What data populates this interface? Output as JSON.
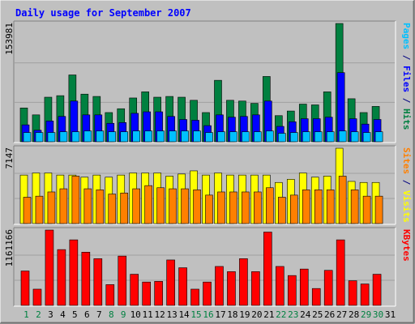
{
  "chart_data": {
    "type": "bar",
    "title": "Daily usage for September 2007",
    "x": [
      1,
      2,
      3,
      4,
      5,
      6,
      7,
      8,
      9,
      10,
      11,
      12,
      13,
      14,
      15,
      16,
      17,
      18,
      19,
      20,
      21,
      22,
      23,
      24,
      25,
      26,
      27,
      28,
      29,
      30,
      31
    ],
    "weekend_days": [
      1,
      2,
      8,
      9,
      15,
      16,
      22,
      23,
      29,
      30
    ],
    "panels": [
      {
        "key": "hits_files_pages",
        "ymax_label": "153981",
        "ylim": [
          0,
          153981
        ],
        "axis_label_parts": [
          {
            "text": "Pages",
            "color": "#00c0ff"
          },
          {
            "text": " / ",
            "color": "#000080"
          },
          {
            "text": "Files",
            "color": "#0000ff"
          },
          {
            "text": " / ",
            "color": "#000080"
          },
          {
            "text": "Hits",
            "color": "#008040"
          }
        ],
        "series": [
          {
            "name": "Hits",
            "color": "#008040",
            "values": [
              44000,
              35000,
              58000,
              60000,
              87000,
              62000,
              59000,
              38000,
              43000,
              57000,
              65000,
              58000,
              59000,
              58000,
              54000,
              38000,
              80000,
              54000,
              53000,
              50000,
              85000,
              34000,
              40000,
              49000,
              48000,
              65000,
              153981,
              56000,
              38000,
              46000
            ]
          },
          {
            "name": "Files",
            "color": "#0000ff",
            "values": [
              22000,
              15000,
              27000,
              33000,
              53000,
              35000,
              35000,
              24000,
              25000,
              37000,
              39000,
              39000,
              33000,
              29000,
              28000,
              21000,
              35000,
              32000,
              33000,
              35000,
              53000,
              20000,
              26000,
              30000,
              30000,
              32000,
              90000,
              30000,
              23000,
              29000
            ]
          },
          {
            "name": "Pages",
            "color": "#00c0ff",
            "values": [
              12000,
              12000,
              12000,
              13000,
              13000,
              14000,
              14000,
              13000,
              13000,
              14000,
              14000,
              14000,
              14000,
              14000,
              14000,
              12000,
              13000,
              13000,
              13000,
              13000,
              14000,
              11000,
              12000,
              13000,
              13000,
              13000,
              14000,
              13000,
              12000,
              13000
            ]
          }
        ]
      },
      {
        "key": "visits_sites",
        "ymax_label": "7147",
        "ylim": [
          0,
          7147
        ],
        "axis_label_parts": [
          {
            "text": "Sites",
            "color": "#ff8000"
          },
          {
            "text": " / ",
            "color": "#000080"
          },
          {
            "text": "Visits",
            "color": "#ffff00"
          }
        ],
        "series": [
          {
            "name": "Visits",
            "color": "#ffff00",
            "values": [
              4600,
              4800,
              4800,
              4600,
              4600,
              4400,
              4600,
              4400,
              4600,
              4800,
              4800,
              4800,
              4500,
              4700,
              5000,
              4600,
              4800,
              4600,
              4600,
              4600,
              4600,
              3900,
              4200,
              4800,
              4400,
              4500,
              7147,
              4000,
              3900,
              3900
            ]
          },
          {
            "name": "Sites",
            "color": "#ff8000",
            "values": [
              2500,
              2600,
              3000,
              3300,
              4500,
              3300,
              3200,
              2800,
              2900,
              3300,
              3600,
              3400,
              3300,
              3300,
              3200,
              2700,
              3000,
              3000,
              3000,
              3000,
              3400,
              2500,
              2700,
              3200,
              3200,
              3200,
              4500,
              3200,
              2600,
              2600
            ]
          }
        ]
      },
      {
        "key": "kbytes",
        "ymax_label": "1161166",
        "ylim": [
          0,
          1161166
        ],
        "axis_label_parts": [
          {
            "text": "KBytes",
            "color": "#ff0000"
          }
        ],
        "series": [
          {
            "name": "KBytes",
            "color": "#ff0000",
            "values": [
              530000,
              250000,
              1161166,
              860000,
              1010000,
              820000,
              720000,
              320000,
              760000,
              480000,
              360000,
              370000,
              700000,
              580000,
              250000,
              360000,
              600000,
              520000,
              720000,
              520000,
              1130000,
              600000,
              460000,
              560000,
              260000,
              540000,
              1010000,
              380000,
              330000,
              480000
            ]
          }
        ]
      }
    ]
  }
}
